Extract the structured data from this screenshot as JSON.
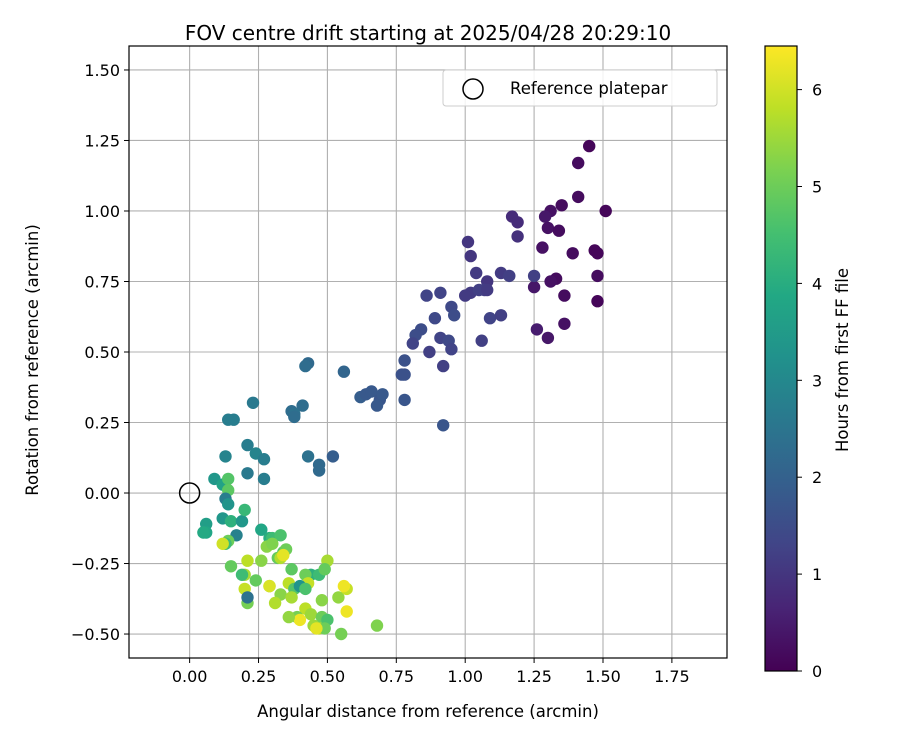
{
  "chart_data": {
    "type": "scatter",
    "title": "FOV centre drift starting at 2025/04/28 20:29:10",
    "xlabel": "Angular distance from reference (arcmin)",
    "ylabel": "Rotation from reference (arcmin)",
    "xlim": [
      -0.22,
      1.95
    ],
    "ylim": [
      -0.585,
      1.585
    ],
    "xticks": [
      0.0,
      0.25,
      0.5,
      0.75,
      1.0,
      1.25,
      1.5,
      1.75
    ],
    "xtick_labels": [
      "0.00",
      "0.25",
      "0.50",
      "0.75",
      "1.00",
      "1.25",
      "1.50",
      "1.75"
    ],
    "yticks": [
      -0.5,
      -0.25,
      0.0,
      0.25,
      0.5,
      0.75,
      1.0,
      1.25,
      1.5
    ],
    "ytick_labels": [
      "−0.50",
      "−0.25",
      "0.00",
      "0.25",
      "0.50",
      "0.75",
      "1.00",
      "1.25",
      "1.50"
    ],
    "grid": true,
    "legend": {
      "placement": "top-right",
      "entries": [
        "Reference platepar"
      ]
    },
    "colorbar": {
      "label": "Hours from first FF file",
      "colormap": "viridis",
      "range": [
        0,
        6.45
      ],
      "ticks": [
        0,
        1,
        2,
        3,
        4,
        5,
        6
      ],
      "tick_labels": [
        "0",
        "1",
        "2",
        "3",
        "4",
        "5",
        "6"
      ]
    },
    "reference_point": {
      "x": 0.0,
      "y": 0.0
    },
    "points": [
      [
        1.45,
        1.23,
        0.1
      ],
      [
        1.41,
        1.17,
        0.2
      ],
      [
        1.41,
        1.05,
        0.2
      ],
      [
        1.51,
        1.0,
        0.1
      ],
      [
        1.35,
        1.02,
        0.2
      ],
      [
        1.31,
        1.0,
        0.3
      ],
      [
        1.29,
        0.98,
        0.4
      ],
      [
        1.3,
        0.94,
        0.3
      ],
      [
        1.34,
        0.93,
        0.2
      ],
      [
        1.47,
        0.86,
        0.1
      ],
      [
        1.48,
        0.85,
        0.1
      ],
      [
        1.39,
        0.85,
        0.2
      ],
      [
        1.28,
        0.87,
        0.3
      ],
      [
        1.48,
        0.77,
        0.2
      ],
      [
        1.33,
        0.76,
        0.2
      ],
      [
        1.31,
        0.75,
        0.3
      ],
      [
        1.36,
        0.7,
        0.2
      ],
      [
        1.48,
        0.68,
        0.1
      ],
      [
        1.25,
        0.73,
        0.4
      ],
      [
        1.26,
        0.58,
        0.5
      ],
      [
        1.3,
        0.55,
        0.4
      ],
      [
        1.36,
        0.6,
        0.3
      ],
      [
        1.17,
        0.98,
        0.8
      ],
      [
        1.19,
        0.96,
        0.8
      ],
      [
        1.19,
        0.91,
        0.9
      ],
      [
        1.01,
        0.89,
        1.0
      ],
      [
        1.02,
        0.84,
        1.0
      ],
      [
        1.04,
        0.78,
        1.1
      ],
      [
        1.08,
        0.75,
        1.0
      ],
      [
        1.07,
        0.72,
        1.2
      ],
      [
        1.13,
        0.78,
        1.1
      ],
      [
        1.16,
        0.77,
        1.2
      ],
      [
        1.25,
        0.77,
        1.2
      ],
      [
        1.02,
        0.71,
        1.1
      ],
      [
        1.05,
        0.72,
        1.2
      ],
      [
        1.08,
        0.72,
        1.1
      ],
      [
        1.0,
        0.7,
        1.1
      ],
      [
        1.09,
        0.62,
        1.3
      ],
      [
        1.13,
        0.63,
        1.2
      ],
      [
        1.06,
        0.54,
        1.2
      ],
      [
        0.86,
        0.7,
        1.3
      ],
      [
        0.91,
        0.71,
        1.3
      ],
      [
        0.95,
        0.66,
        1.4
      ],
      [
        0.96,
        0.63,
        1.5
      ],
      [
        0.89,
        0.62,
        1.4
      ],
      [
        0.84,
        0.58,
        1.5
      ],
      [
        0.82,
        0.56,
        1.5
      ],
      [
        0.81,
        0.53,
        1.3
      ],
      [
        0.87,
        0.5,
        1.2
      ],
      [
        0.91,
        0.55,
        1.3
      ],
      [
        0.94,
        0.54,
        1.4
      ],
      [
        0.95,
        0.51,
        1.3
      ],
      [
        0.78,
        0.47,
        1.6
      ],
      [
        0.77,
        0.42,
        1.6
      ],
      [
        0.78,
        0.42,
        1.6
      ],
      [
        0.92,
        0.45,
        1.2
      ],
      [
        0.78,
        0.33,
        1.7
      ],
      [
        0.92,
        0.24,
        1.7
      ],
      [
        0.56,
        0.43,
        2.1
      ],
      [
        0.62,
        0.34,
        1.9
      ],
      [
        0.64,
        0.35,
        1.8
      ],
      [
        0.66,
        0.36,
        1.8
      ],
      [
        0.69,
        0.33,
        1.7
      ],
      [
        0.7,
        0.35,
        1.8
      ],
      [
        0.68,
        0.31,
        1.8
      ],
      [
        0.43,
        0.46,
        2.2
      ],
      [
        0.42,
        0.45,
        2.3
      ],
      [
        0.41,
        0.31,
        2.3
      ],
      [
        0.37,
        0.29,
        2.3
      ],
      [
        0.38,
        0.28,
        2.4
      ],
      [
        0.38,
        0.27,
        2.3
      ],
      [
        0.23,
        0.32,
        2.6
      ],
      [
        0.16,
        0.26,
        2.7
      ],
      [
        0.14,
        0.26,
        2.7
      ],
      [
        0.21,
        0.17,
        2.7
      ],
      [
        0.24,
        0.14,
        2.9
      ],
      [
        0.27,
        0.12,
        2.7
      ],
      [
        0.21,
        0.07,
        2.6
      ],
      [
        0.27,
        0.05,
        2.7
      ],
      [
        0.43,
        0.13,
        2.4
      ],
      [
        0.47,
        0.1,
        2.2
      ],
      [
        0.47,
        0.08,
        2.2
      ],
      [
        0.52,
        0.13,
        1.9
      ],
      [
        0.13,
        0.13,
        2.9
      ],
      [
        0.09,
        0.05,
        3.4
      ],
      [
        0.12,
        0.03,
        3.7
      ],
      [
        0.14,
        0.05,
        4.7
      ],
      [
        0.14,
        0.01,
        4.8
      ],
      [
        0.13,
        -0.02,
        2.7
      ],
      [
        0.14,
        -0.04,
        3.3
      ],
      [
        0.06,
        -0.11,
        3.6
      ],
      [
        0.06,
        -0.14,
        3.8
      ],
      [
        0.05,
        -0.14,
        3.9
      ],
      [
        0.12,
        -0.09,
        3.4
      ],
      [
        0.15,
        -0.1,
        4.1
      ],
      [
        0.19,
        -0.1,
        3.4
      ],
      [
        0.17,
        -0.15,
        2.8
      ],
      [
        0.2,
        -0.06,
        4.3
      ],
      [
        0.26,
        -0.13,
        3.8
      ],
      [
        0.29,
        -0.16,
        4.0
      ],
      [
        0.3,
        -0.16,
        4.4
      ],
      [
        0.33,
        -0.15,
        4.6
      ],
      [
        0.34,
        -0.21,
        4.8
      ],
      [
        0.32,
        -0.23,
        4.9
      ],
      [
        0.28,
        -0.19,
        5.3
      ],
      [
        0.3,
        -0.18,
        5.2
      ],
      [
        0.35,
        -0.2,
        5.0
      ],
      [
        0.14,
        -0.17,
        5.0
      ],
      [
        0.13,
        -0.18,
        4.4
      ],
      [
        0.12,
        -0.18,
        6.0
      ],
      [
        0.15,
        -0.26,
        4.9
      ],
      [
        0.21,
        -0.24,
        5.8
      ],
      [
        0.26,
        -0.24,
        5.3
      ],
      [
        0.33,
        -0.23,
        5.7
      ],
      [
        0.34,
        -0.22,
        6.2
      ],
      [
        0.37,
        -0.27,
        4.8
      ],
      [
        0.44,
        -0.29,
        4.1
      ],
      [
        0.42,
        -0.29,
        5.0
      ],
      [
        0.47,
        -0.29,
        4.4
      ],
      [
        0.5,
        -0.24,
        5.6
      ],
      [
        0.49,
        -0.27,
        4.9
      ],
      [
        0.43,
        -0.32,
        5.9
      ],
      [
        0.36,
        -0.32,
        5.8
      ],
      [
        0.29,
        -0.33,
        5.4
      ],
      [
        0.29,
        -0.33,
        6.1
      ],
      [
        0.38,
        -0.34,
        4.7
      ],
      [
        0.4,
        -0.33,
        3.3
      ],
      [
        0.42,
        -0.34,
        4.6
      ],
      [
        0.33,
        -0.36,
        5.3
      ],
      [
        0.37,
        -0.37,
        5.6
      ],
      [
        0.31,
        -0.39,
        5.7
      ],
      [
        0.48,
        -0.38,
        5.3
      ],
      [
        0.54,
        -0.37,
        5.4
      ],
      [
        0.57,
        -0.34,
        5.9
      ],
      [
        0.56,
        -0.33,
        6.3
      ],
      [
        0.42,
        -0.41,
        5.8
      ],
      [
        0.44,
        -0.43,
        5.5
      ],
      [
        0.48,
        -0.44,
        5.0
      ],
      [
        0.5,
        -0.45,
        4.6
      ],
      [
        0.57,
        -0.42,
        6.3
      ],
      [
        0.39,
        -0.44,
        5.1
      ],
      [
        0.4,
        -0.45,
        6.3
      ],
      [
        0.36,
        -0.44,
        5.4
      ],
      [
        0.45,
        -0.47,
        5.5
      ],
      [
        0.47,
        -0.48,
        5.7
      ],
      [
        0.49,
        -0.48,
        5.0
      ],
      [
        0.46,
        -0.48,
        6.2
      ],
      [
        0.55,
        -0.5,
        5.1
      ],
      [
        0.68,
        -0.47,
        5.2
      ],
      [
        0.2,
        -0.29,
        5.6
      ],
      [
        0.2,
        -0.34,
        5.9
      ],
      [
        0.21,
        -0.39,
        5.1
      ],
      [
        0.21,
        -0.37,
        2.4
      ],
      [
        0.19,
        -0.29,
        4.4
      ],
      [
        0.24,
        -0.31,
        4.9
      ]
    ]
  }
}
